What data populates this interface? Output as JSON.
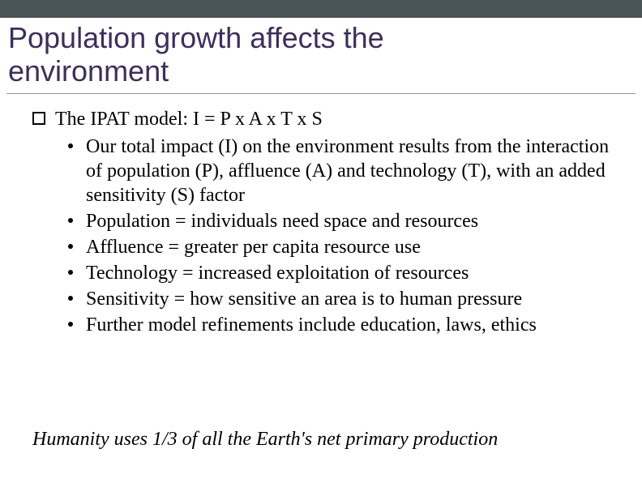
{
  "slide": {
    "title": "Population growth affects the environment",
    "title_color": "#3b2f5c",
    "title_fontsize": 36,
    "body_fontsize": 24,
    "topbar_color": "#4a5558",
    "background_color": "#ffffff",
    "main_bullet": "The IPAT model:  I = P x A x T x S",
    "sub_bullets": [
      "Our total impact (I) on the environment results from the interaction of population (P), affluence (A) and technology (T), with an added sensitivity (S) factor",
      "Population = individuals need space and resources",
      "Affluence = greater per capita resource use",
      "Technology = increased exploitation of resources",
      "Sensitivity = how sensitive an area is to human pressure",
      "Further model refinements include education, laws, ethics"
    ],
    "footer": "Humanity uses 1/3 of all the Earth's net primary production"
  }
}
